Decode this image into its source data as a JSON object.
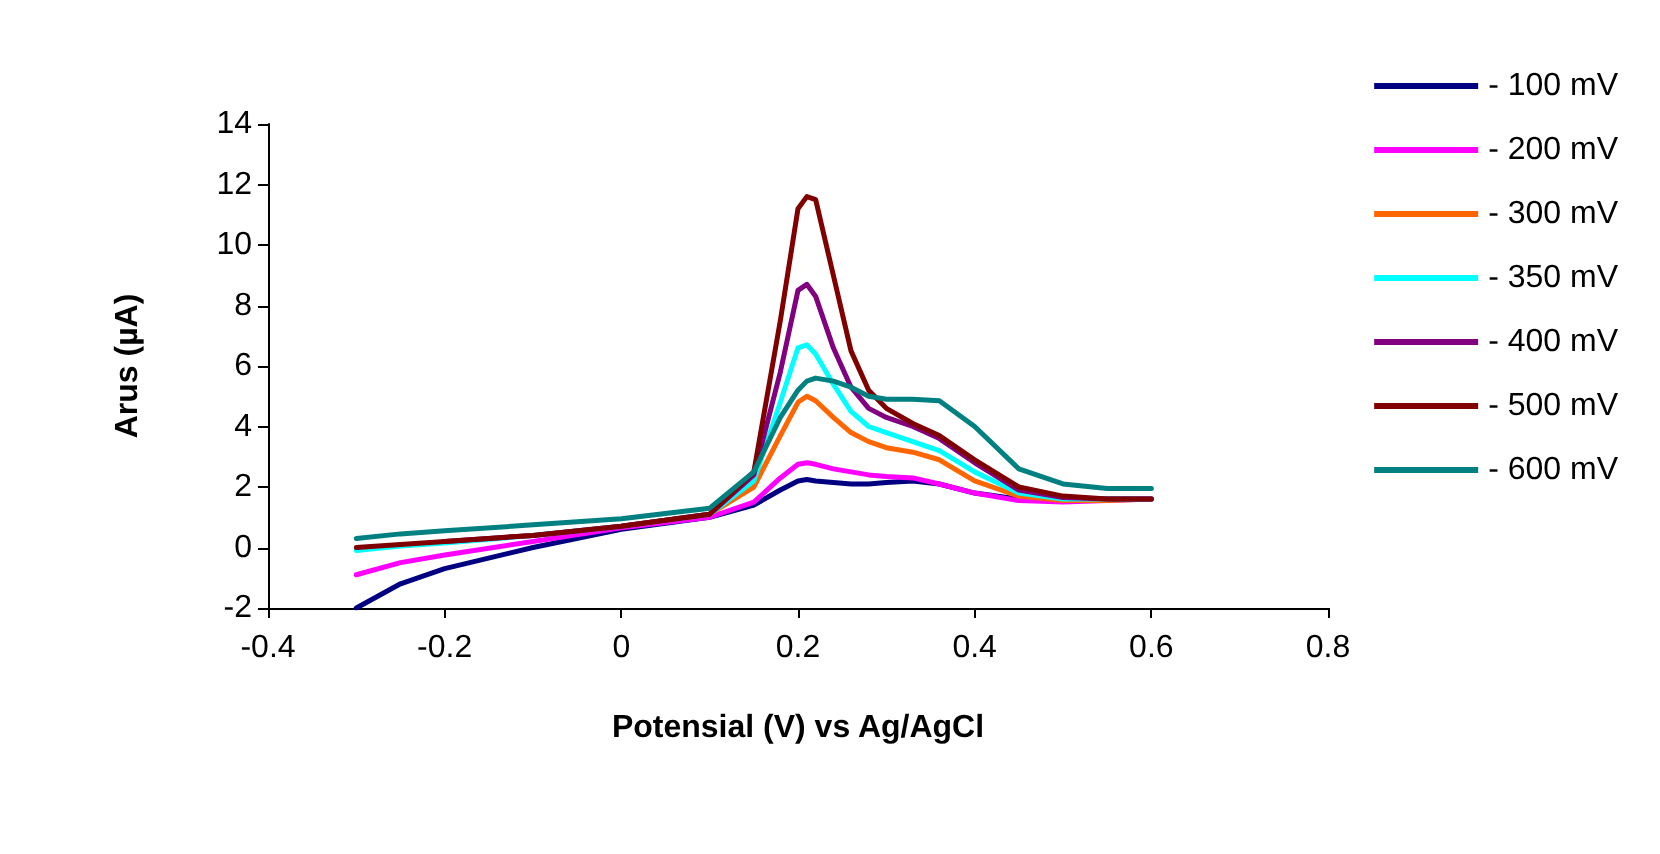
{
  "chart_data": {
    "type": "line",
    "xlabel": "Potensial (V) vs Ag/AgCl",
    "ylabel": "Arus (µA)",
    "x": [
      -0.3,
      -0.25,
      -0.2,
      -0.1,
      0,
      0.1,
      0.15,
      0.18,
      0.2,
      0.21,
      0.22,
      0.24,
      0.26,
      0.28,
      0.3,
      0.33,
      0.36,
      0.4,
      0.45,
      0.5,
      0.55,
      0.6
    ],
    "series": [
      {
        "name": "- 100 mV",
        "color": "#000080",
        "values": [
          -2,
          -1.2,
          -0.7,
          0,
          0.6,
          1.0,
          1.4,
          1.9,
          2.2,
          2.25,
          2.2,
          2.15,
          2.1,
          2.1,
          2.15,
          2.2,
          2.1,
          1.8,
          1.6,
          1.55,
          1.6,
          1.6
        ]
      },
      {
        "name": "- 200 mV",
        "color": "#ff00ff",
        "values": [
          -0.9,
          -0.5,
          -0.25,
          0.2,
          0.65,
          1.0,
          1.5,
          2.3,
          2.75,
          2.8,
          2.75,
          2.6,
          2.5,
          2.4,
          2.35,
          2.3,
          2.1,
          1.8,
          1.55,
          1.5,
          1.55,
          1.6
        ]
      },
      {
        "name": "- 300 mV",
        "color": "#ff6600",
        "values": [
          null,
          null,
          null,
          null,
          0.7,
          1.1,
          2.0,
          3.7,
          4.8,
          5.0,
          4.85,
          4.3,
          3.8,
          3.5,
          3.3,
          3.15,
          2.9,
          2.2,
          1.7,
          1.55,
          1.55,
          1.6
        ]
      },
      {
        "name": "- 350 mV",
        "color": "#00ffff",
        "values": [
          -0.1,
          0.05,
          0.15,
          0.4,
          0.7,
          1.1,
          2.2,
          4.8,
          6.6,
          6.7,
          6.4,
          5.4,
          4.5,
          4.0,
          3.8,
          3.5,
          3.2,
          2.5,
          1.8,
          1.6,
          1.6,
          1.6
        ]
      },
      {
        "name": "- 400 mV",
        "color": "#800080",
        "values": [
          null,
          null,
          0.2,
          0.4,
          0.7,
          1.1,
          2.4,
          5.8,
          8.5,
          8.7,
          8.3,
          6.6,
          5.3,
          4.6,
          4.3,
          4.0,
          3.6,
          2.8,
          1.9,
          1.65,
          1.6,
          1.6
        ]
      },
      {
        "name": "- 500 mV",
        "color": "#800000",
        "values": [
          0,
          0.1,
          0.2,
          0.4,
          0.7,
          1.1,
          2.5,
          7.5,
          11.2,
          11.6,
          11.5,
          9.0,
          6.5,
          5.2,
          4.6,
          4.1,
          3.7,
          2.9,
          2.0,
          1.7,
          1.6,
          1.6
        ]
      },
      {
        "name": "- 600 mV",
        "color": "#008080",
        "values": [
          0.3,
          0.45,
          0.55,
          0.75,
          0.95,
          1.3,
          2.5,
          4.3,
          5.2,
          5.5,
          5.6,
          5.5,
          5.3,
          5.0,
          4.9,
          4.9,
          4.85,
          4.0,
          2.6,
          2.1,
          1.95,
          1.95
        ]
      }
    ],
    "xlim": [
      -0.4,
      0.8
    ],
    "xticks": [
      -0.4,
      -0.2,
      0,
      0.2,
      0.4,
      0.6,
      0.8
    ],
    "ylim": [
      -2,
      14
    ],
    "yticks": [
      -2,
      0,
      2,
      4,
      6,
      8,
      10,
      12,
      14
    ],
    "grid": false,
    "legend": "right",
    "marker": "none",
    "line_style": "solid"
  }
}
